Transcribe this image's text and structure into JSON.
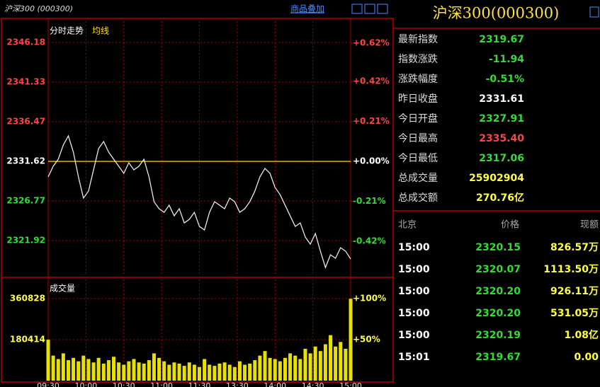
{
  "header": {
    "title": "沪深300 (000300)",
    "overlay": "商品叠加"
  },
  "chart_data": [
    {
      "type": "line",
      "title": "分时走势",
      "subtitle": "均线",
      "color": "#e8e8e8",
      "x": [
        0,
        4,
        8,
        12,
        16,
        20,
        24,
        28,
        32,
        36,
        40,
        44,
        48,
        52,
        56,
        60,
        64,
        68,
        72,
        76,
        80,
        84,
        88,
        92,
        96,
        100,
        104,
        108,
        112,
        116,
        120,
        124,
        128,
        132,
        136,
        140,
        144,
        148,
        152,
        156,
        160,
        164,
        168,
        172,
        176,
        180,
        184,
        188,
        192,
        196,
        200,
        204,
        208,
        212,
        216,
        220,
        224,
        228,
        232,
        236,
        240
      ],
      "values": [
        2329.72,
        2331.02,
        2331.88,
        2333.62,
        2334.74,
        2332.75,
        2329.72,
        2327.12,
        2327.98,
        2330.58,
        2333.18,
        2334.05,
        2332.75,
        2331.88,
        2331.02,
        2330.15,
        2331.45,
        2330.58,
        2331.02,
        2331.88,
        2329.72,
        2326.68,
        2325.82,
        2325.38,
        2326.25,
        2324.95,
        2325.82,
        2324.08,
        2324.52,
        2325.38,
        2323.65,
        2323.22,
        2325.38,
        2326.68,
        2326.25,
        2325.82,
        2327.12,
        2326.68,
        2325.38,
        2325.82,
        2326.68,
        2327.98,
        2329.72,
        2330.76,
        2330.15,
        2328.42,
        2327.55,
        2326.25,
        2324.95,
        2323.65,
        2324.08,
        2322.35,
        2321.48,
        2322.78,
        2320.62,
        2318.62,
        2320.18,
        2319.75,
        2321.05,
        2320.62,
        2319.67
      ],
      "xlim": [
        0,
        240
      ],
      "ylim": [
        2317.59,
        2348.78
      ],
      "yticks": [
        2346.18,
        2341.33,
        2336.47,
        2331.62,
        2326.77,
        2321.92
      ],
      "y2lim": [
        -0.602,
        0.736
      ],
      "y2ticks": [
        {
          "value": 0.62,
          "label": "+0.62%"
        },
        {
          "value": 0.42,
          "label": "+0.42%"
        },
        {
          "value": 0.21,
          "label": "+0.21%"
        },
        {
          "value": 0,
          "label": "+0.00%"
        },
        {
          "value": -0.21,
          "label": "-0.21%"
        },
        {
          "value": -0.42,
          "label": "-0.42%"
        }
      ],
      "grid": true
    },
    {
      "type": "bar",
      "title": "成交量",
      "color": "#e8e000",
      "x": [
        0,
        4,
        8,
        12,
        16,
        20,
        24,
        28,
        32,
        36,
        40,
        44,
        48,
        52,
        56,
        60,
        64,
        68,
        72,
        76,
        80,
        84,
        88,
        92,
        96,
        100,
        104,
        108,
        112,
        116,
        120,
        124,
        128,
        132,
        136,
        140,
        144,
        148,
        152,
        156,
        160,
        164,
        168,
        172,
        176,
        180,
        184,
        188,
        192,
        196,
        200,
        204,
        208,
        212,
        216,
        220,
        224,
        228,
        232,
        236,
        240
      ],
      "values": [
        180000,
        110000,
        95000,
        120000,
        90000,
        100000,
        85000,
        110000,
        95000,
        80000,
        100000,
        75000,
        90000,
        105000,
        80000,
        70000,
        85000,
        95000,
        80000,
        75000,
        90000,
        120000,
        100000,
        85000,
        70000,
        80000,
        75000,
        65000,
        80000,
        70000,
        60000,
        95000,
        70000,
        65000,
        75000,
        80000,
        70000,
        60000,
        85000,
        70000,
        75000,
        90000,
        110000,
        130000,
        100000,
        95000,
        85000,
        100000,
        120000,
        110000,
        95000,
        140000,
        120000,
        150000,
        130000,
        160000,
        200000,
        150000,
        170000,
        140000,
        360000
      ],
      "xlim": [
        0,
        240
      ],
      "xticks": [
        {
          "value": 0,
          "label": "09:30"
        },
        {
          "value": 30,
          "label": "10:00"
        },
        {
          "value": 60,
          "label": "10:30"
        },
        {
          "value": 90,
          "label": "11:00"
        },
        {
          "value": 120,
          "label": "11:30"
        },
        {
          "value": 150,
          "label": "13:30"
        },
        {
          "value": 180,
          "label": "14:00"
        },
        {
          "value": 210,
          "label": "14:30"
        },
        {
          "value": 240,
          "label": "15:00"
        }
      ],
      "ylim": [
        0,
        444813
      ],
      "yticks": [
        360828,
        180414
      ],
      "y2lim": [
        0,
        123.28
      ],
      "y2ticks": [
        {
          "value": 100,
          "label": "+100%"
        },
        {
          "value": 50,
          "label": "+50%"
        }
      ],
      "grid": true
    }
  ],
  "quote": {
    "title": "沪深300(000300)",
    "rows": [
      {
        "label": "最新指数",
        "value": "2319.67",
        "color": "#33dd33"
      },
      {
        "label": "指数涨跌",
        "value": "-11.94",
        "color": "#33dd33"
      },
      {
        "label": "涨跌幅度",
        "value": "-0.51%",
        "color": "#33dd33"
      },
      {
        "label": "昨日收盘",
        "value": "2331.61",
        "color": "#ffffff"
      },
      {
        "label": "今日开盘",
        "value": "2327.91",
        "color": "#33dd33"
      },
      {
        "label": "今日最高",
        "value": "2335.40",
        "color": "#ff4444"
      },
      {
        "label": "今日最低",
        "value": "2317.06",
        "color": "#33dd33"
      },
      {
        "label": "总成交量",
        "value": "25902904",
        "color": "#ffff44"
      },
      {
        "label": "总成交额",
        "value": "270.76亿",
        "color": "#ffff44"
      }
    ]
  },
  "trades": {
    "headers": [
      "北京",
      "价格",
      "现额"
    ],
    "rows": [
      [
        "15:00",
        "2320.15",
        "826.57万"
      ],
      [
        "15:00",
        "2320.07",
        "1113.50万"
      ],
      [
        "15:00",
        "2320.20",
        "926.11万"
      ],
      [
        "15:00",
        "2320.20",
        "531.05万"
      ],
      [
        "15:00",
        "2320.19",
        "1.08亿"
      ],
      [
        "15:01",
        "2319.67",
        "0.00"
      ]
    ]
  }
}
